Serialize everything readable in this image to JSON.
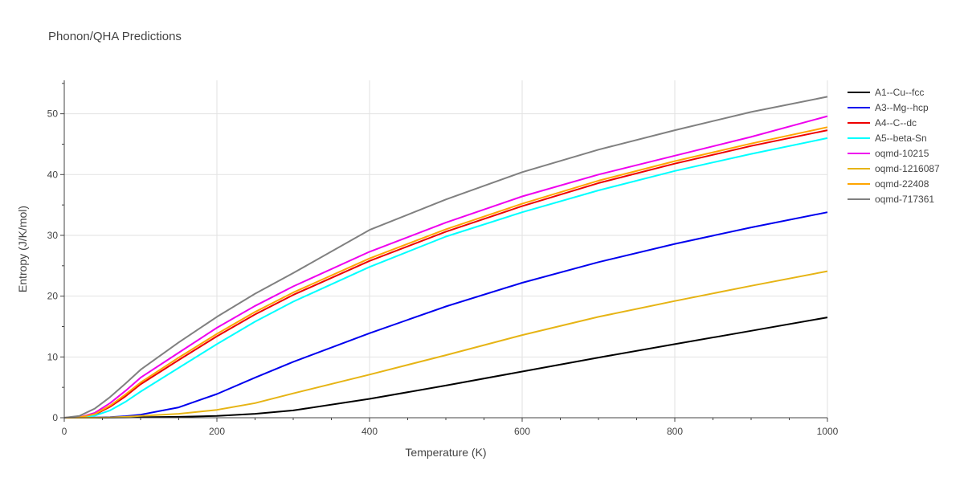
{
  "chart_data": {
    "type": "line",
    "title": "Phonon/QHA Predictions",
    "xlabel": "Temperature (K)",
    "ylabel": "Entropy (J/K/mol)",
    "xlim": [
      0,
      1000
    ],
    "ylim": [
      0,
      55.5
    ],
    "xticks": [
      0,
      200,
      400,
      600,
      800,
      1000
    ],
    "yticks": [
      0,
      10,
      20,
      30,
      40,
      50
    ],
    "grid": true,
    "legend_position": "right",
    "x": [
      0,
      20,
      40,
      60,
      80,
      100,
      150,
      200,
      250,
      300,
      400,
      500,
      600,
      700,
      800,
      900,
      1000
    ],
    "series": [
      {
        "name": "A1--Cu--fcc",
        "color": "#000000",
        "values": [
          0,
          0,
          0,
          0.02,
          0.05,
          0.08,
          0.15,
          0.3,
          0.65,
          1.2,
          3.1,
          5.3,
          7.6,
          9.9,
          12.1,
          14.3,
          16.5
        ]
      },
      {
        "name": "A3--Mg--hcp",
        "color": "#0000ee",
        "values": [
          0,
          0,
          0.02,
          0.1,
          0.25,
          0.5,
          1.7,
          3.9,
          6.6,
          9.2,
          13.9,
          18.3,
          22.2,
          25.6,
          28.6,
          31.3,
          33.8
        ]
      },
      {
        "name": "A4--C--dc",
        "color": "#ee0000",
        "values": [
          0,
          0.05,
          0.5,
          1.8,
          3.5,
          5.5,
          9.5,
          13.4,
          17.0,
          20.2,
          25.8,
          30.6,
          34.8,
          38.6,
          41.8,
          44.7,
          47.3
        ]
      },
      {
        "name": "A5--beta-Sn",
        "color": "#00ffff",
        "values": [
          0,
          0.03,
          0.35,
          1.2,
          2.6,
          4.3,
          8.2,
          12.1,
          15.8,
          19.1,
          24.8,
          29.8,
          33.8,
          37.4,
          40.6,
          43.4,
          46.0
        ]
      },
      {
        "name": "oqmd-10215",
        "color": "#ee00ee",
        "values": [
          0,
          0.08,
          0.8,
          2.4,
          4.4,
          6.6,
          10.7,
          14.8,
          18.4,
          21.6,
          27.3,
          32.1,
          36.4,
          40.0,
          43.1,
          46.2,
          49.6
        ]
      },
      {
        "name": "oqmd-1216087",
        "color": "#e6b415",
        "values": [
          0,
          0,
          0,
          0.05,
          0.15,
          0.3,
          0.65,
          1.3,
          2.4,
          4.0,
          7.1,
          10.3,
          13.6,
          16.6,
          19.2,
          21.7,
          24.1
        ]
      },
      {
        "name": "oqmd-22408",
        "color": "#ffa500",
        "values": [
          0,
          0.06,
          0.6,
          2.0,
          3.8,
          5.8,
          9.9,
          13.8,
          17.4,
          20.6,
          26.2,
          31.0,
          35.2,
          39.0,
          42.2,
          45.1,
          47.8
        ]
      },
      {
        "name": "oqmd-717361",
        "color": "#808080",
        "values": [
          0,
          0.3,
          1.5,
          3.4,
          5.6,
          7.9,
          12.4,
          16.6,
          20.4,
          23.8,
          30.9,
          35.9,
          40.4,
          44.1,
          47.3,
          50.3,
          52.8
        ]
      }
    ]
  }
}
